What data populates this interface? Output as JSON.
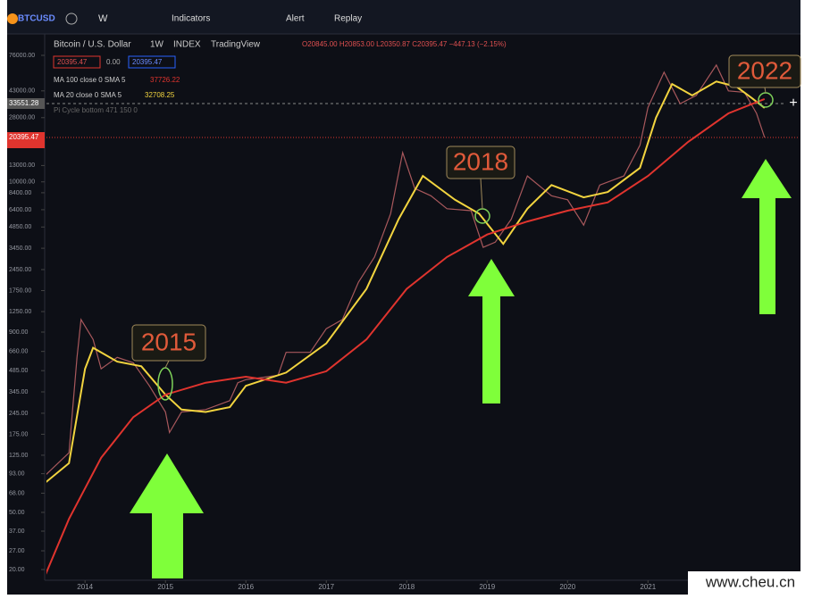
{
  "toolbar": {
    "symbol": "BTCUSD",
    "interval": "W",
    "indicators": "Indicators",
    "alert": "Alert",
    "replay": "Replay"
  },
  "legend": {
    "name": "Bitcoin / U.S. Dollar",
    "interval": "1W",
    "exchange": "INDEX",
    "source": "TradingView",
    "ohlc": "O20845.00 H20853.00 L20350.87 C20395.47 −447.13 (−2.15%)",
    "bid": "20395.47",
    "spread": "0.00",
    "ask": "20395.47",
    "ma100": "MA 100 close 0 SMA 5",
    "ma100_value": "37726.22",
    "ma20": "MA 20 close 0 SMA 5",
    "ma20_value": "32708.25",
    "pi": "Pi Cycle bottom 471 150 0"
  },
  "axis_labels": {
    "crosshair": "33551.28",
    "last_price": "20395.47"
  },
  "watermark": "www.cheu.cn",
  "chart_data": {
    "type": "line",
    "log_scale": true,
    "xlim": [
      2013.52,
      2022.83
    ],
    "xticks": [
      2014,
      2015,
      2016,
      2017,
      2018,
      2019,
      2020,
      2021
    ],
    "ylim": [
      20,
      76000
    ],
    "yticks": [
      {
        "value": 76000,
        "label": "76000.00"
      },
      {
        "value": 43000,
        "label": "43000.00"
      },
      {
        "value": 28000,
        "label": "28000.00"
      },
      {
        "value": 13000,
        "label": "13000.00"
      },
      {
        "value": 10000,
        "label": "10000.00"
      },
      {
        "value": 8400,
        "label": "8400.00"
      },
      {
        "value": 6400,
        "label": "6400.00"
      },
      {
        "value": 4850,
        "label": "4850.00"
      },
      {
        "value": 3450,
        "label": "3450.00"
      },
      {
        "value": 2450,
        "label": "2450.00"
      },
      {
        "value": 1750,
        "label": "1750.00"
      },
      {
        "value": 1250,
        "label": "1250.00"
      },
      {
        "value": 900,
        "label": "900.00"
      },
      {
        "value": 660,
        "label": "660.00"
      },
      {
        "value": 485,
        "label": "485.00"
      },
      {
        "value": 345,
        "label": "345.00"
      },
      {
        "value": 245,
        "label": "245.00"
      },
      {
        "value": 175,
        "label": "175.00"
      },
      {
        "value": 125,
        "label": "125.00"
      },
      {
        "value": 93,
        "label": "93.00"
      },
      {
        "value": 68,
        "label": "68.00"
      },
      {
        "value": 50,
        "label": "50.00"
      },
      {
        "value": 37,
        "label": "37.00"
      },
      {
        "value": 27,
        "label": "27.00"
      },
      {
        "value": 20,
        "label": "20.00"
      }
    ],
    "series": [
      {
        "name": "Bitcoin / U.S. Dollar",
        "color": "#a8585c",
        "x": [
          2013.5,
          2013.8,
          2013.9,
          2013.95,
          2014.1,
          2014.2,
          2014.4,
          2014.6,
          2014.8,
          2015.0,
          2015.05,
          2015.2,
          2015.5,
          2015.8,
          2015.9,
          2016.0,
          2016.4,
          2016.5,
          2016.8,
          2017.0,
          2017.2,
          2017.4,
          2017.6,
          2017.8,
          2017.95,
          2018.1,
          2018.3,
          2018.5,
          2018.8,
          2018.95,
          2019.1,
          2019.3,
          2019.5,
          2019.8,
          2020.0,
          2020.2,
          2020.4,
          2020.7,
          2020.9,
          2021.0,
          2021.2,
          2021.4,
          2021.6,
          2021.85,
          2022.0,
          2022.2,
          2022.35,
          2022.45
        ],
        "values": [
          90,
          130,
          600,
          1100,
          800,
          500,
          600,
          550,
          380,
          250,
          180,
          250,
          260,
          300,
          400,
          420,
          450,
          650,
          650,
          950,
          1100,
          2000,
          3000,
          6000,
          16000,
          9000,
          8000,
          6500,
          6300,
          3500,
          3800,
          5500,
          11000,
          8000,
          7500,
          5000,
          9500,
          11000,
          18000,
          33000,
          58000,
          35000,
          40000,
          65000,
          43000,
          42000,
          30000,
          20395
        ]
      },
      {
        "name": "MA 20",
        "color": "#f2d43f",
        "x": [
          2013.5,
          2013.8,
          2014.0,
          2014.1,
          2014.4,
          2014.7,
          2015.0,
          2015.2,
          2015.5,
          2015.8,
          2016.0,
          2016.5,
          2017.0,
          2017.5,
          2017.9,
          2018.2,
          2018.6,
          2018.9,
          2019.2,
          2019.5,
          2019.8,
          2020.2,
          2020.5,
          2020.9,
          2021.1,
          2021.3,
          2021.55,
          2021.85,
          2022.1,
          2022.3,
          2022.45
        ],
        "values": [
          80,
          110,
          500,
          700,
          560,
          520,
          330,
          260,
          250,
          270,
          380,
          470,
          750,
          1800,
          5500,
          11000,
          7500,
          6000,
          3700,
          6500,
          9500,
          7800,
          8500,
          12500,
          28000,
          48000,
          40000,
          50000,
          46000,
          38000,
          32708
        ]
      },
      {
        "name": "MA 100",
        "color": "#e0342e",
        "x": [
          2013.5,
          2013.8,
          2014.2,
          2014.6,
          2015.0,
          2015.5,
          2016.0,
          2016.5,
          2017.0,
          2017.5,
          2018.0,
          2018.5,
          2019.0,
          2019.5,
          2020.0,
          2020.5,
          2021.0,
          2021.5,
          2022.0,
          2022.45
        ],
        "values": [
          18,
          45,
          120,
          230,
          330,
          400,
          440,
          400,
          480,
          800,
          1800,
          3000,
          4300,
          5300,
          6300,
          7200,
          11000,
          19000,
          30000,
          37726
        ]
      }
    ],
    "annotations": [
      "2015",
      "2018",
      "2022"
    ]
  }
}
